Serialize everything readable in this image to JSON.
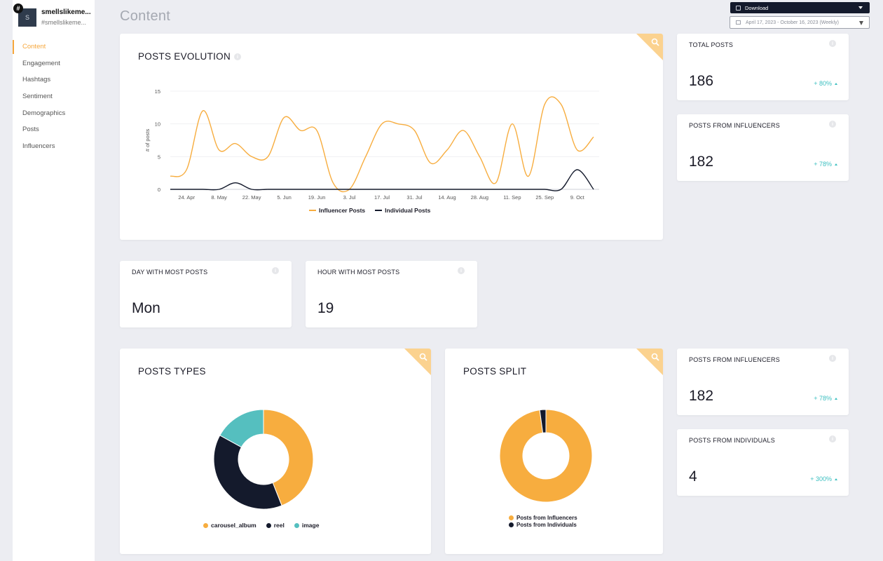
{
  "account": {
    "avatar_letter": "S",
    "badge": "#",
    "name": "smellslikeme...",
    "handle": "#smellslikeme..."
  },
  "sidebar": {
    "items": [
      {
        "label": "Content",
        "active": true
      },
      {
        "label": "Engagement"
      },
      {
        "label": "Hashtags"
      },
      {
        "label": "Sentiment"
      },
      {
        "label": "Demographics"
      },
      {
        "label": "Posts"
      },
      {
        "label": "Influencers"
      }
    ]
  },
  "page": {
    "title": "Content"
  },
  "toolbar": {
    "download_label": "Download",
    "date_range": "April 17, 2023 - October 16, 2023 (Weekly)"
  },
  "cards": {
    "posts_evolution": {
      "title": "POSTS EVOLUTION"
    },
    "total_posts": {
      "label": "TOTAL POSTS",
      "value": "186",
      "change": "+ 80%"
    },
    "posts_from_influencers": {
      "label": "POSTS FROM INFLUENCERS",
      "value": "182",
      "change": "+ 78%"
    },
    "day_most_posts": {
      "label": "DAY WITH MOST POSTS",
      "value": "Mon"
    },
    "hour_most_posts": {
      "label": "HOUR WITH MOST POSTS",
      "value": "19"
    },
    "posts_types": {
      "title": "POSTS TYPES"
    },
    "posts_split": {
      "title": "POSTS SPLIT"
    },
    "posts_from_influencers_2": {
      "label": "POSTS FROM INFLUENCERS",
      "value": "182",
      "change": "+ 78%"
    },
    "posts_from_individuals": {
      "label": "POSTS FROM INDIVIDUALS",
      "value": "4",
      "change": "+ 300%"
    }
  },
  "colors": {
    "accent": "#f6a73c",
    "influencer": "#f7ad3f",
    "individual": "#141a2c",
    "image": "#55bfbf",
    "positive": "#3bbfc0"
  },
  "chart_data": [
    {
      "type": "line",
      "title": "POSTS EVOLUTION",
      "ylabel": "# of posts",
      "xlabel": "",
      "ylim": [
        0,
        15
      ],
      "yticks": [
        0,
        5,
        10,
        15
      ],
      "x_ticks": [
        "24. Apr",
        "8. May",
        "22. May",
        "5. Jun",
        "19. Jun",
        "3. Jul",
        "17. Jul",
        "31. Jul",
        "14. Aug",
        "28. Aug",
        "11. Sep",
        "25. Sep",
        "9. Oct"
      ],
      "x": [
        "17. Apr",
        "24. Apr",
        "1. May",
        "8. May",
        "15. May",
        "22. May",
        "29. May",
        "5. Jun",
        "12. Jun",
        "19. Jun",
        "26. Jun",
        "3. Jul",
        "10. Jul",
        "17. Jul",
        "24. Jul",
        "31. Jul",
        "7. Aug",
        "14. Aug",
        "21. Aug",
        "28. Aug",
        "4. Sep",
        "11. Sep",
        "18. Sep",
        "25. Sep",
        "2. Oct",
        "9. Oct",
        "16. Oct"
      ],
      "series": [
        {
          "name": "Influencer Posts",
          "color": "#f7ad3f",
          "values": [
            2,
            3,
            12,
            6,
            7,
            5,
            5,
            11,
            9,
            9,
            1,
            0,
            5,
            10,
            10,
            9,
            4,
            6,
            9,
            5,
            1,
            10,
            2,
            13,
            13,
            6,
            8
          ]
        },
        {
          "name": "Individual Posts",
          "color": "#141a2c",
          "values": [
            0,
            0,
            0,
            0,
            1,
            0,
            0,
            0,
            0,
            0,
            0,
            0,
            0,
            0,
            0,
            0,
            0,
            0,
            0,
            0,
            0,
            0,
            0,
            0,
            0,
            3,
            0
          ]
        }
      ],
      "grid": true,
      "legend": "bottom"
    },
    {
      "type": "pie",
      "title": "POSTS TYPES",
      "categories": [
        "carousel_album",
        "reel",
        "image"
      ],
      "values": [
        44,
        39,
        17
      ],
      "colors": [
        "#f7ad3f",
        "#141a2c",
        "#55bfbf"
      ],
      "donut": true,
      "legend": "bottom"
    },
    {
      "type": "pie",
      "title": "POSTS SPLIT",
      "categories": [
        "Posts from Influencers",
        "Posts from Individuals"
      ],
      "values": [
        182,
        4
      ],
      "colors": [
        "#f7ad3f",
        "#141a2c"
      ],
      "donut": true,
      "legend": "bottom"
    }
  ]
}
